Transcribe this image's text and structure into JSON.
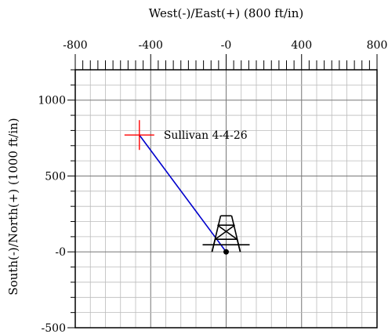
{
  "chart_data": {
    "type": "scatter",
    "title": "",
    "xlabel": "West(-)/East(+) (800 ft/in)",
    "ylabel": "South(-)/North(+) (1000 ft/in)",
    "xlim": [
      -800,
      800
    ],
    "ylim": [
      -500,
      1200
    ],
    "x_ticks": [
      -800,
      -400,
      0,
      400,
      800
    ],
    "x_tick_labels": [
      "-800",
      "-400",
      "-0",
      "400",
      "800"
    ],
    "y_ticks": [
      -500,
      0,
      500,
      1000
    ],
    "y_tick_labels": [
      "-500",
      "-0",
      "500",
      "1000"
    ],
    "grid": true,
    "grid_step": {
      "x": 80,
      "y": 100
    },
    "well_path": {
      "x": [
        0,
        -460
      ],
      "y": [
        0,
        770
      ],
      "color": "#0000cc"
    },
    "surface_location": {
      "x": 0,
      "y": 0,
      "symbol": "rig-icon"
    },
    "target": {
      "x": -460,
      "y": 770,
      "label": "Sullivan 4-4-26",
      "color": "#ff0000",
      "symbol": "crosshair-icon"
    }
  }
}
